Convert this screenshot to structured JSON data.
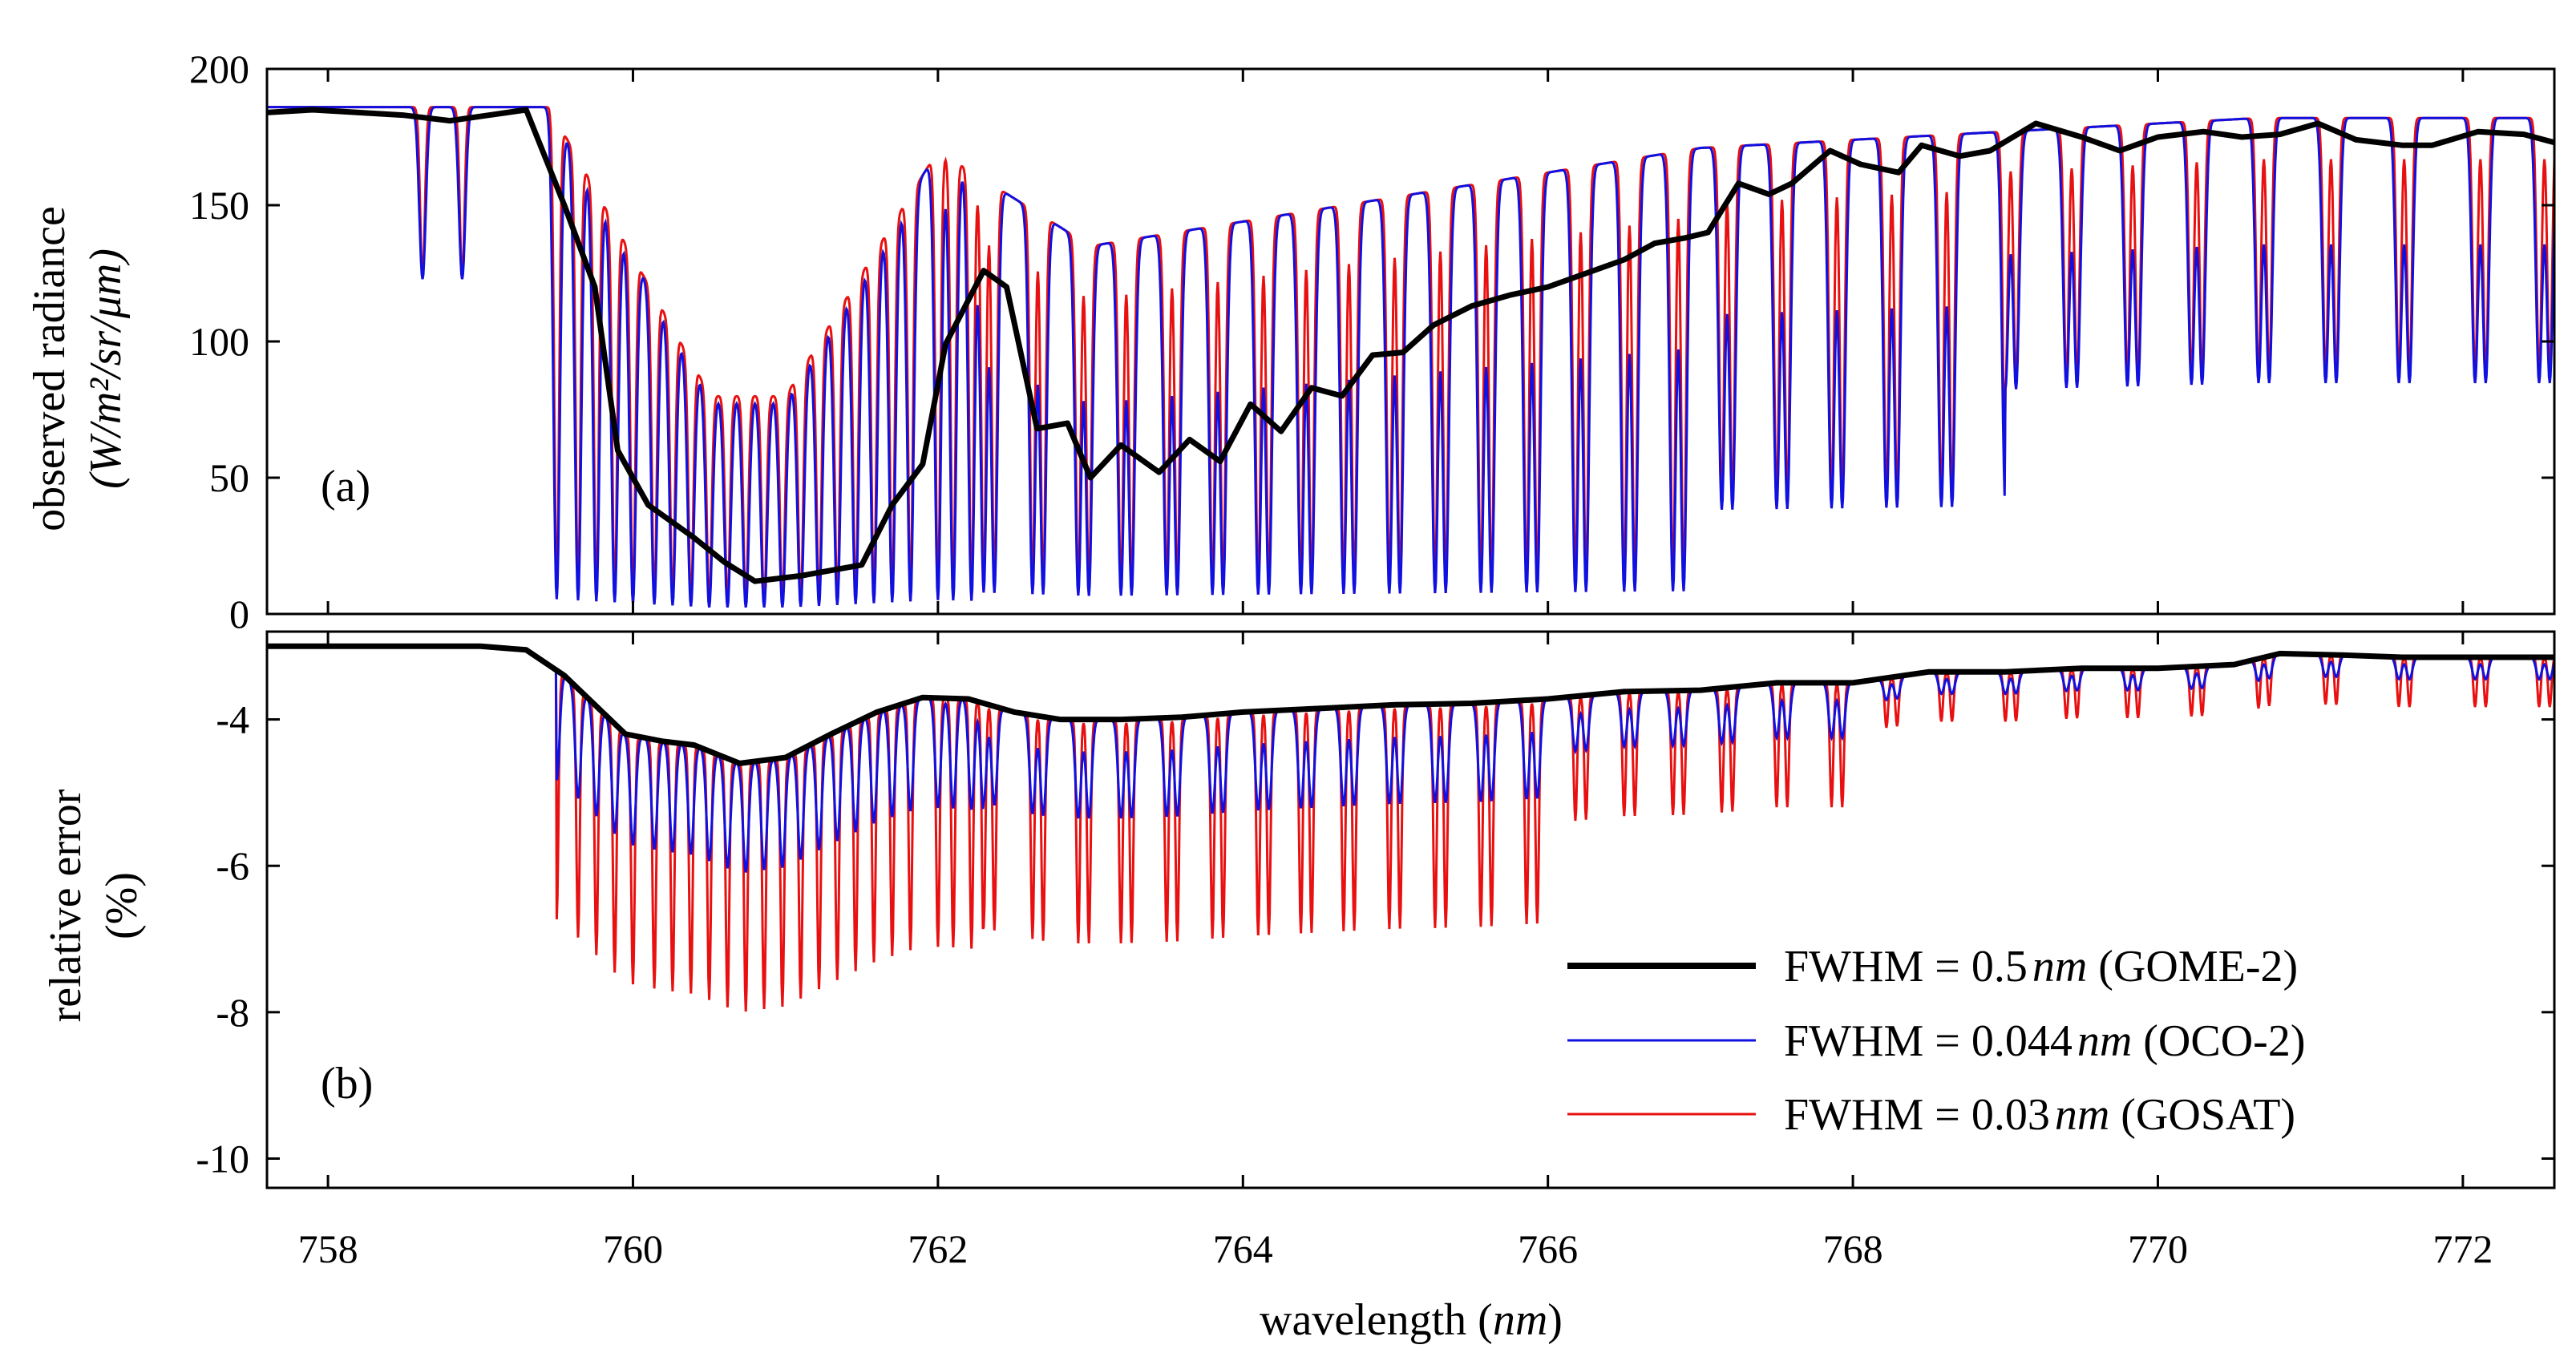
{
  "chart_data": [
    {
      "panel": "a",
      "type": "line",
      "panel_label": "(a)",
      "ylabel_line1": "observed radiance",
      "ylabel_line2": "(W/m²/sr/μm)",
      "xlabel": "wavelength (nm)",
      "xlim": [
        757.6,
        772.6
      ],
      "ylim": [
        0,
        200
      ],
      "xticks": [
        758,
        760,
        762,
        764,
        766,
        768,
        770,
        772
      ],
      "yticks": [
        0,
        50,
        100,
        150,
        200
      ],
      "series": [
        {
          "name": "GOME-2",
          "fwhm_nm": 0.5,
          "color": "#000000",
          "x": [
            757.6,
            757.9,
            758.2,
            758.5,
            758.8,
            759.05,
            759.3,
            759.55,
            759.75,
            759.9,
            760.1,
            760.4,
            760.6,
            760.8,
            761.1,
            761.5,
            761.7,
            761.9,
            762.05,
            762.3,
            762.45,
            762.65,
            762.85,
            763.0,
            763.2,
            763.45,
            763.65,
            763.85,
            764.05,
            764.25,
            764.45,
            764.65,
            764.85,
            765.05,
            765.25,
            765.5,
            765.75,
            766.0,
            766.25,
            766.5,
            766.7,
            766.9,
            767.05,
            767.25,
            767.45,
            767.6,
            767.85,
            768.05,
            768.3,
            768.45,
            768.7,
            768.9,
            769.2,
            769.5,
            769.75,
            770.0,
            770.3,
            770.55,
            770.8,
            771.05,
            771.3,
            771.6,
            771.8,
            772.1,
            772.4,
            772.6
          ],
          "y": [
            184,
            185,
            184,
            183,
            181,
            183,
            185,
            150,
            120,
            60,
            40,
            28,
            19,
            12,
            14,
            18,
            40,
            55,
            99,
            126,
            120,
            68,
            70,
            50,
            62,
            52,
            64,
            56,
            77,
            67,
            83,
            80,
            95,
            96,
            106,
            113,
            117,
            120,
            125,
            130,
            136,
            138,
            140,
            158,
            154,
            158,
            170,
            165,
            162,
            172,
            168,
            170,
            180,
            175,
            170,
            175,
            177,
            175,
            176,
            180,
            174,
            172,
            172,
            177,
            176,
            173
          ]
        },
        {
          "name": "OCO-2",
          "fwhm_nm": 0.044,
          "color": "#1010e0"
        },
        {
          "name": "GOSAT",
          "fwhm_nm": 0.03,
          "color": "#e81010"
        }
      ]
    },
    {
      "panel": "b",
      "type": "line",
      "panel_label": "(b)",
      "ylabel_line1": "relative error",
      "ylabel_line2": "(%)",
      "xlabel": "wavelength (nm)",
      "xlim": [
        757.6,
        772.6
      ],
      "ylim": [
        -10.4,
        -2.8
      ],
      "xticks": [
        758,
        760,
        762,
        764,
        766,
        768,
        770,
        772
      ],
      "yticks": [
        -10,
        -8,
        -6,
        -4
      ],
      "series": [
        {
          "name": "GOME-2",
          "fwhm_nm": 0.5,
          "color": "#000000",
          "x": [
            757.6,
            758.5,
            759.0,
            759.3,
            759.55,
            759.8,
            759.95,
            760.2,
            760.4,
            760.7,
            761.0,
            761.3,
            761.6,
            761.9,
            762.2,
            762.5,
            762.8,
            763.2,
            763.6,
            764.0,
            764.5,
            765.0,
            765.5,
            766.0,
            766.5,
            767.0,
            767.5,
            768.0,
            768.5,
            769.0,
            769.5,
            770.0,
            770.5,
            770.8,
            771.2,
            771.6,
            772.0,
            772.6
          ],
          "y": [
            -3.0,
            -3.0,
            -3.0,
            -3.05,
            -3.4,
            -3.9,
            -4.2,
            -4.3,
            -4.35,
            -4.6,
            -4.52,
            -4.2,
            -3.9,
            -3.7,
            -3.72,
            -3.9,
            -4.0,
            -4.0,
            -3.97,
            -3.9,
            -3.85,
            -3.8,
            -3.78,
            -3.72,
            -3.62,
            -3.6,
            -3.5,
            -3.5,
            -3.35,
            -3.35,
            -3.3,
            -3.3,
            -3.25,
            -3.1,
            -3.12,
            -3.15,
            -3.15,
            -3.15
          ]
        },
        {
          "name": "OCO-2",
          "fwhm_nm": 0.044,
          "color": "#1010e0"
        },
        {
          "name": "GOSAT",
          "fwhm_nm": 0.03,
          "color": "#e81010"
        }
      ]
    }
  ],
  "legend": [
    {
      "prefix": "FWHM = 0.5",
      "unit": "nm",
      "suffix": " (GOME-2)",
      "color": "#000000"
    },
    {
      "prefix": "FWHM = 0.044",
      "unit": "nm",
      "suffix": " (OCO-2)",
      "color": "#1010e0"
    },
    {
      "prefix": "FWHM = 0.03",
      "unit": "nm",
      "suffix": " (GOSAT)",
      "color": "#e81010"
    }
  ],
  "xlabel_word": "wavelength",
  "xlabel_unit": "nm"
}
